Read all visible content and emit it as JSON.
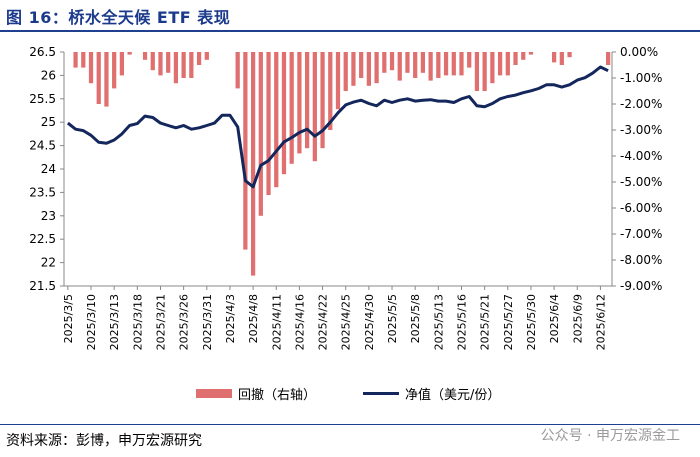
{
  "header": {
    "title": "图 16：桥水全天候 ETF 表现"
  },
  "footer": {
    "source": "资料来源：彭博，申万宏源研究",
    "watermark": "公众号 · 申万宏源金工"
  },
  "colors": {
    "bar": "#e07070",
    "line": "#14275c",
    "title": "#1b3a8c"
  },
  "chart_data": {
    "type": "bar+line",
    "categories": [
      "2025/3/5",
      "2025/3/6",
      "2025/3/7",
      "2025/3/10",
      "2025/3/11",
      "2025/3/12",
      "2025/3/13",
      "2025/3/14",
      "2025/3/17",
      "2025/3/18",
      "2025/3/19",
      "2025/3/20",
      "2025/3/21",
      "2025/3/24",
      "2025/3/25",
      "2025/3/26",
      "2025/3/27",
      "2025/3/28",
      "2025/3/31",
      "2025/4/1",
      "2025/4/2",
      "2025/4/3",
      "2025/4/4",
      "2025/4/7",
      "2025/4/8",
      "2025/4/9",
      "2025/4/10",
      "2025/4/11",
      "2025/4/14",
      "2025/4/15",
      "2025/4/16",
      "2025/4/17",
      "2025/4/21",
      "2025/4/22",
      "2025/4/23",
      "2025/4/24",
      "2025/4/25",
      "2025/4/28",
      "2025/4/29",
      "2025/4/30",
      "2025/5/1",
      "2025/5/2",
      "2025/5/5",
      "2025/5/6",
      "2025/5/7",
      "2025/5/8",
      "2025/5/9",
      "2025/5/12",
      "2025/5/13",
      "2025/5/14",
      "2025/5/15",
      "2025/5/16",
      "2025/5/19",
      "2025/5/20",
      "2025/5/21",
      "2025/5/22",
      "2025/5/23",
      "2025/5/27",
      "2025/5/28",
      "2025/5/29",
      "2025/5/30",
      "2025/6/2",
      "2025/6/3",
      "2025/6/4",
      "2025/6/5",
      "2025/6/6",
      "2025/6/9",
      "2025/6/10",
      "2025/6/11",
      "2025/6/12",
      "2025/6/13"
    ],
    "tick_labels": [
      "2025/3/5",
      "2025/3/10",
      "2025/3/13",
      "2025/3/18",
      "2025/3/21",
      "2025/3/26",
      "2025/3/31",
      "2025/4/3",
      "2025/4/8",
      "2025/4/11",
      "2025/4/16",
      "2025/4/22",
      "2025/4/25",
      "2025/4/30",
      "2025/5/5",
      "2025/5/8",
      "2025/5/13",
      "2025/5/16",
      "2025/5/21",
      "2025/5/27",
      "2025/5/30",
      "2025/6/4",
      "2025/6/9",
      "2025/6/12"
    ],
    "series": [
      {
        "name": "回撤（右轴）",
        "type": "bar",
        "axis": "right",
        "values": [
          0,
          -0.6,
          -0.6,
          -1.2,
          -2.0,
          -2.1,
          -1.4,
          -0.9,
          -0.1,
          0,
          -0.3,
          -0.7,
          -0.9,
          -0.8,
          -1.2,
          -1.0,
          -1.0,
          -0.5,
          -0.3,
          0,
          0,
          0,
          -1.4,
          -7.6,
          -8.6,
          -6.3,
          -5.5,
          -5.2,
          -4.7,
          -4.3,
          -3.9,
          -3.7,
          -4.2,
          -3.7,
          -3.0,
          -2.2,
          -1.5,
          -1.3,
          -1.0,
          -1.3,
          -1.2,
          -0.8,
          -0.7,
          -1.1,
          -0.8,
          -1.0,
          -0.8,
          -1.1,
          -1.0,
          -0.9,
          -0.9,
          -0.9,
          -0.6,
          -1.5,
          -1.5,
          -1.2,
          -0.9,
          -0.9,
          -0.5,
          -0.3,
          -0.1,
          0,
          0,
          -0.4,
          -0.5,
          -0.2,
          0,
          0,
          0,
          0,
          -0.5
        ]
      },
      {
        "name": "净值（美元/份）",
        "type": "line",
        "axis": "left",
        "values": [
          24.98,
          24.85,
          24.82,
          24.72,
          24.57,
          24.55,
          24.62,
          24.75,
          24.93,
          24.97,
          25.13,
          25.1,
          24.98,
          24.93,
          24.88,
          24.93,
          24.85,
          24.88,
          24.93,
          24.98,
          25.15,
          25.15,
          24.9,
          23.75,
          23.62,
          24.08,
          24.18,
          24.38,
          24.58,
          24.67,
          24.78,
          24.85,
          24.7,
          24.82,
          25.0,
          25.2,
          25.37,
          25.43,
          25.47,
          25.4,
          25.35,
          25.47,
          25.42,
          25.47,
          25.5,
          25.45,
          25.47,
          25.48,
          25.45,
          25.45,
          25.42,
          25.5,
          25.55,
          25.35,
          25.33,
          25.4,
          25.5,
          25.55,
          25.58,
          25.63,
          25.67,
          25.72,
          25.8,
          25.8,
          25.75,
          25.8,
          25.9,
          25.95,
          26.05,
          26.18,
          26.1
        ]
      }
    ],
    "y_left": {
      "ticks": [
        "21.5",
        "22",
        "22.5",
        "23",
        "23.5",
        "24",
        "24.5",
        "25",
        "25.5",
        "26",
        "26.5"
      ],
      "ylim": [
        21.5,
        26.5
      ]
    },
    "y_right": {
      "ticks": [
        "0.00%",
        "-1.00%",
        "-2.00%",
        "-3.00%",
        "-4.00%",
        "-5.00%",
        "-6.00%",
        "-7.00%",
        "-8.00%",
        "-9.00%"
      ],
      "ylim": [
        -9,
        0
      ]
    },
    "legend_position": "bottom",
    "grid": false
  }
}
